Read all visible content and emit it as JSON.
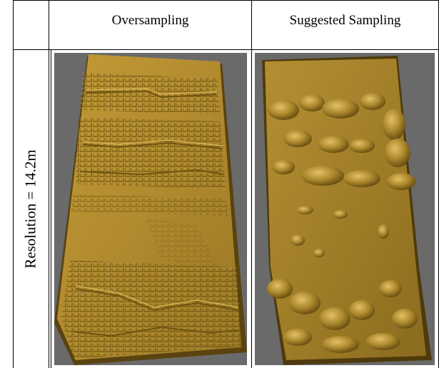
{
  "table": {
    "col_headers": [
      "Oversampling",
      "Suggested Sampling"
    ],
    "row_label": "Resolution = 14.2m"
  },
  "colors": {
    "panel_bg": "#6a6a6a",
    "terrain_base": "#b08a2e",
    "terrain_shadow": "#6e5410",
    "terrain_highlight": "#e0bd5a"
  }
}
